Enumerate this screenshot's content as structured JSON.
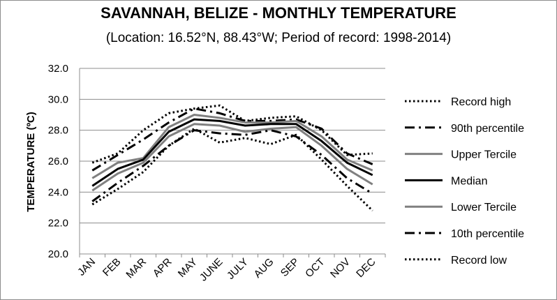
{
  "chart_data": {
    "type": "line",
    "title": "SAVANNAH, BELIZE - MONTHLY TEMPERATURE",
    "subtitle": "(Location: 16.52°N, 88.43°W; Period of record: 1998-2014)",
    "ylabel": "TEMPERATURE (ºC)",
    "xlabel": "",
    "ylim": [
      20.0,
      32.0
    ],
    "yticks": [
      "20.0",
      "22.0",
      "24.0",
      "26.0",
      "28.0",
      "30.0",
      "32.0"
    ],
    "grid": true,
    "legend_position": "right",
    "categories": [
      "JAN",
      "FEB",
      "MAR",
      "APR",
      "MAY",
      "JUNE",
      "JULY",
      "AUG",
      "SEP",
      "OCT",
      "NOV",
      "DEC"
    ],
    "series": [
      {
        "name": "Record high",
        "style": "dotted",
        "color": "#000000",
        "values": [
          25.9,
          26.5,
          28.0,
          29.1,
          29.4,
          29.6,
          28.6,
          28.8,
          28.9,
          28.0,
          26.4,
          26.5
        ]
      },
      {
        "name": "90th percentile",
        "style": "dashdot",
        "color": "#000000",
        "values": [
          25.4,
          26.4,
          27.4,
          28.5,
          29.4,
          29.1,
          28.6,
          28.6,
          28.7,
          28.1,
          26.5,
          25.8
        ]
      },
      {
        "name": "Upper Tercile",
        "style": "solid",
        "color": "#808080",
        "values": [
          24.9,
          25.9,
          26.2,
          28.2,
          29.0,
          28.8,
          28.5,
          28.5,
          28.6,
          27.6,
          26.1,
          25.4
        ]
      },
      {
        "name": "Median",
        "style": "solid",
        "color": "#000000",
        "values": [
          24.4,
          25.5,
          26.1,
          27.9,
          28.7,
          28.6,
          28.3,
          28.4,
          28.4,
          27.3,
          25.9,
          25.1
        ]
      },
      {
        "name": "Lower Tercile",
        "style": "solid",
        "color": "#808080",
        "values": [
          24.1,
          25.2,
          25.9,
          27.6,
          28.4,
          28.3,
          27.9,
          28.1,
          28.2,
          27.0,
          25.5,
          24.5
        ]
      },
      {
        "name": "10th percentile",
        "style": "dashdot",
        "color": "#000000",
        "values": [
          23.4,
          24.6,
          25.7,
          27.0,
          28.0,
          27.8,
          27.7,
          28.0,
          27.6,
          26.4,
          24.9,
          23.9
        ]
      },
      {
        "name": "Record low",
        "style": "dotted",
        "color": "#000000",
        "values": [
          23.2,
          24.2,
          25.3,
          27.0,
          28.1,
          27.2,
          27.5,
          27.1,
          27.7,
          26.1,
          24.4,
          22.8
        ]
      }
    ]
  }
}
